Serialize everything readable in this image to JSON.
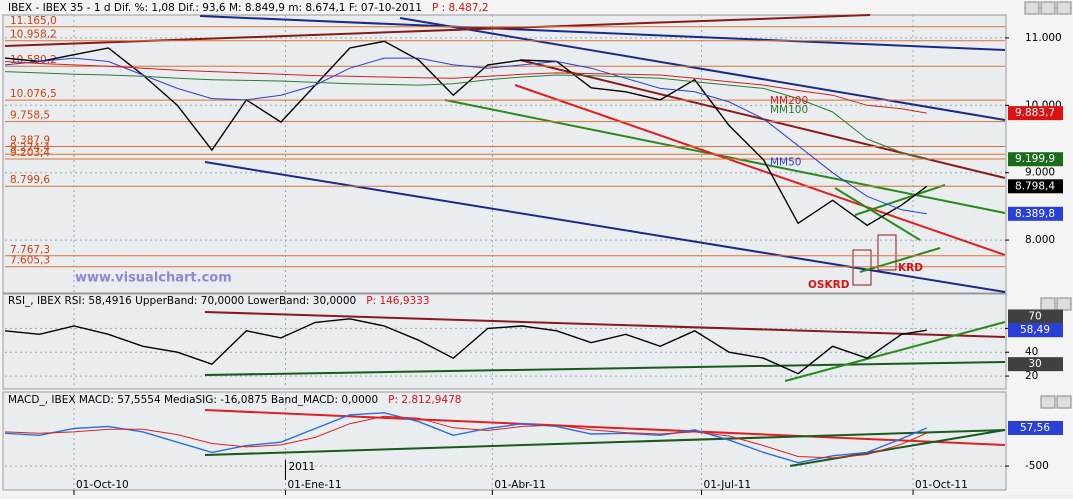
{
  "chart_data": [
    {
      "type": "line",
      "title": "IBEX - IBEX 35 - 1 d Dif. %: 1,08 Dif.: 93,6 M: 8.849,9 m: 8.674,1 F: 07-10-2011",
      "p_label": "P : 8.487,2",
      "x": [
        -30,
        -15,
        0,
        15,
        30,
        45,
        60,
        75,
        90,
        105,
        120,
        135,
        150,
        165,
        180,
        195,
        210,
        225,
        240,
        255,
        270,
        285,
        300,
        315,
        330,
        345,
        360,
        371
      ],
      "xlim": [
        -30,
        405
      ],
      "ylim": [
        7230,
        11310
      ],
      "yticks": [
        {
          "value": 11000,
          "label": "11.000"
        },
        {
          "value": 10000,
          "label": "10.000"
        },
        {
          "value": 9000,
          "label": "9.000"
        },
        {
          "value": 8000,
          "label": "8.000"
        }
      ],
      "series": [
        {
          "name": "IBEX",
          "color": "#000000",
          "values": [
            10700,
            10650,
            10750,
            10850,
            10450,
            10000,
            9335,
            10080,
            9750,
            10300,
            10850,
            10950,
            10670,
            10150,
            10600,
            10670,
            10650,
            10260,
            10200,
            10080,
            10380,
            9700,
            9190,
            8250,
            8590,
            8220,
            8520,
            8798.4
          ]
        },
        {
          "name": "MM50",
          "color": "#2a3fd8",
          "values": [
            10600,
            10650,
            10700,
            10650,
            10450,
            10250,
            10100,
            10080,
            10150,
            10300,
            10550,
            10700,
            10700,
            10600,
            10550,
            10600,
            10650,
            10550,
            10400,
            10250,
            10200,
            10050,
            9800,
            9400,
            9000,
            8650,
            8450,
            8389.8
          ]
        },
        {
          "name": "MM100",
          "color": "#2e7d2e",
          "values": [
            10500,
            10480,
            10460,
            10450,
            10430,
            10400,
            10380,
            10370,
            10360,
            10340,
            10320,
            10310,
            10300,
            10320,
            10380,
            10420,
            10450,
            10440,
            10420,
            10400,
            10350,
            10300,
            10250,
            10100,
            9900,
            9500,
            9300,
            9199.9
          ]
        },
        {
          "name": "MM200",
          "color": "#d02020",
          "values": [
            10650,
            10620,
            10600,
            10580,
            10550,
            10520,
            10500,
            10480,
            10460,
            10440,
            10430,
            10420,
            10410,
            10400,
            10430,
            10460,
            10480,
            10470,
            10460,
            10450,
            10400,
            10350,
            10300,
            10220,
            10150,
            10000,
            9950,
            9883.7
          ]
        }
      ],
      "levels": [
        {
          "value": 11165,
          "label": "11.165,0"
        },
        {
          "value": 10958.2,
          "label": "10.958,2"
        },
        {
          "value": 10580.2,
          "label": "10.580,2"
        },
        {
          "value": 10076.5,
          "label": "10.076,5"
        },
        {
          "value": 9758.5,
          "label": "9.758,5"
        },
        {
          "value": 9387.9,
          "label": "9.387,9"
        },
        {
          "value": 9274.4,
          "label": "9.274,4"
        },
        {
          "value": 9203.4,
          "label": "9.203,4"
        },
        {
          "value": 8799.6,
          "label": "8.799,6"
        },
        {
          "value": 7767.3,
          "label": "7.767,3"
        },
        {
          "value": 7605.3,
          "label": "7.605,3"
        }
      ],
      "badges": [
        {
          "value": 9883.7,
          "label": "9.883,7",
          "color": "#e01010"
        },
        {
          "value": 9199.9,
          "label": "9.199,9",
          "color": "#1a6b1a"
        },
        {
          "value": 8798.4,
          "label": "8.798,4",
          "color": "#000000"
        },
        {
          "value": 8389.8,
          "label": "8.389,8",
          "color": "#2a3fd8"
        }
      ],
      "annotations": [
        "KRD",
        "OSKRD",
        "www.visualchart.com"
      ]
    },
    {
      "type": "line",
      "title": "RSI_, IBEX RSI: 58,4916 UpperBand: 70,0000 LowerBand: 30,0000",
      "p_label": "P: 146,9333",
      "x": [
        -30,
        -15,
        0,
        15,
        30,
        45,
        60,
        75,
        90,
        105,
        120,
        135,
        150,
        165,
        180,
        195,
        210,
        225,
        240,
        255,
        270,
        285,
        300,
        315,
        330,
        345,
        360,
        371
      ],
      "xlim": [
        -30,
        405
      ],
      "ylim": [
        10,
        88
      ],
      "yticks": [
        60,
        40,
        20
      ],
      "series": [
        {
          "color": "#000000",
          "values": [
            58,
            55,
            62,
            55,
            45,
            40,
            30,
            58,
            52,
            65,
            68,
            62,
            50,
            35,
            60,
            62,
            58,
            48,
            55,
            45,
            58,
            40,
            35,
            22,
            45,
            35,
            55,
            58.49
          ]
        }
      ],
      "badges": [
        {
          "value": 70,
          "label": "70",
          "color": "#404040"
        },
        {
          "value": 58.49,
          "label": "58,49",
          "color": "#2a3fd8"
        },
        {
          "value": 30,
          "label": "30",
          "color": "#404040"
        }
      ]
    },
    {
      "type": "line",
      "title": "MACD_, IBEX MACD: 57,5554 MediaSIG: -16,0875 Band_MACD: 0,0000",
      "p_label": "P: 2.812,9478",
      "x": [
        -30,
        -15,
        0,
        15,
        30,
        45,
        60,
        75,
        90,
        105,
        120,
        135,
        150,
        165,
        180,
        195,
        210,
        225,
        240,
        255,
        270,
        285,
        300,
        315,
        330,
        345,
        360,
        371
      ],
      "xlim": [
        -30,
        405
      ],
      "ylim": [
        -850,
        540
      ],
      "yticks": [
        -500
      ],
      "xticks": [
        {
          "value": 0,
          "label": "01-Oct-10"
        },
        {
          "value": 92,
          "label": "01-Ene-11"
        },
        {
          "value": 182,
          "label": "01-Abr-11"
        },
        {
          "value": 273,
          "label": "01-Jul-11"
        },
        {
          "value": 365,
          "label": "01-Oct-11"
        }
      ],
      "year_marker": {
        "value": 92,
        "label": "2011"
      },
      "series": [
        {
          "color": "#2a6fe0",
          "values": [
            -20,
            -50,
            50,
            80,
            0,
            -150,
            -300,
            -200,
            -150,
            50,
            250,
            280,
            150,
            -50,
            50,
            120,
            80,
            -30,
            -20,
            -50,
            30,
            -120,
            -300,
            -450,
            -350,
            -300,
            -100,
            57.5554
          ]
        },
        {
          "color": "#e02020",
          "values": [
            0,
            -20,
            0,
            40,
            40,
            -40,
            -170,
            -220,
            -190,
            -80,
            120,
            230,
            200,
            60,
            20,
            80,
            100,
            30,
            -10,
            -30,
            0,
            -60,
            -200,
            -360,
            -380,
            -330,
            -180,
            -16.0875
          ]
        }
      ],
      "badges": [
        {
          "value": 57.56,
          "label": "57,56",
          "color": "#2a3fd8"
        }
      ]
    }
  ]
}
